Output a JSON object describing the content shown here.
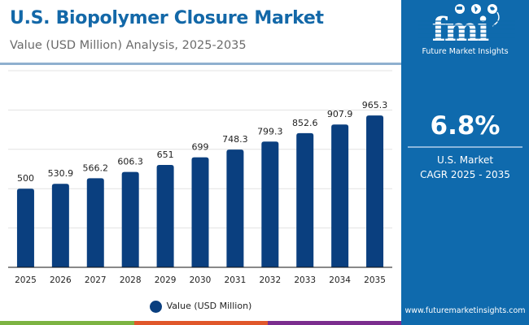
{
  "header": {
    "title": "U.S. Biopolymer Closure Market",
    "subtitle": "Value (USD Million) Analysis, 2025-2035"
  },
  "panel": {
    "brand_name": "Future Market Insights",
    "logo_letters": "fmi",
    "cagr_value": "6.8%",
    "cagr_label_line1": "U.S. Market",
    "cagr_label_line2": "CAGR 2025 - 2035",
    "url": "www.futuremarketinsights.com"
  },
  "colors": {
    "bar": "#0a3f7f",
    "title": "#1368a8",
    "panel": "#0f6aad",
    "stripe_green": "#7cb342",
    "stripe_orange": "#e0572a",
    "stripe_purple": "#7b2d8e"
  },
  "chart_data": {
    "type": "bar",
    "title": "U.S. Biopolymer Closure Market",
    "subtitle": "Value (USD Million) Analysis, 2025-2035",
    "xlabel": "",
    "ylabel": "",
    "categories": [
      "2025",
      "2026",
      "2027",
      "2028",
      "2029",
      "2030",
      "2031",
      "2032",
      "2033",
      "2034",
      "2035"
    ],
    "series": [
      {
        "name": "Value (USD Million)",
        "values": [
          500,
          530.9,
          566.2,
          606.3,
          651,
          699,
          748.3,
          799.3,
          852.6,
          907.9,
          965.3
        ],
        "labels": [
          "500",
          "530.9",
          "566.2",
          "606.3",
          "651",
          "699",
          "748.3",
          "799.3",
          "852.6",
          "907.9",
          "965.3"
        ]
      }
    ],
    "ylim": [
      0,
      1250
    ],
    "ygrid_step": 250,
    "grid": true,
    "y_tick_labels_visible": false,
    "legend": {
      "position": "bottom-center",
      "entries": [
        "Value (USD Million)"
      ]
    }
  }
}
